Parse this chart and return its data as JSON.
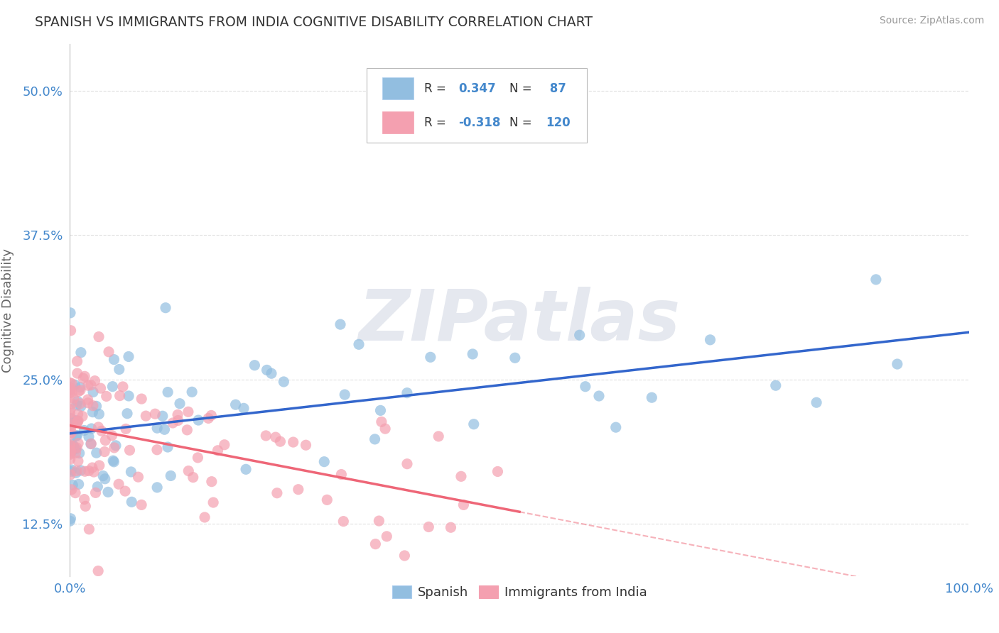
{
  "title": "SPANISH VS IMMIGRANTS FROM INDIA COGNITIVE DISABILITY CORRELATION CHART",
  "source": "Source: ZipAtlas.com",
  "xlim": [
    0,
    100
  ],
  "ylim": [
    8,
    54
  ],
  "ytick_vals": [
    12.5,
    25.0,
    37.5,
    50.0
  ],
  "xtick_vals": [
    0,
    100
  ],
  "blue_color": "#92BEE0",
  "pink_color": "#F4A0B0",
  "trend_blue_color": "#3366CC",
  "trend_pink_solid_color": "#EE6677",
  "trend_pink_dash_color": "#F4A0B0",
  "background_color": "#FFFFFF",
  "grid_color": "#CCCCCC",
  "tick_color": "#4488CC",
  "title_color": "#333333",
  "source_color": "#999999",
  "ylabel_color": "#666666",
  "watermark": "ZIPatlas",
  "legend_r1": "R = ",
  "legend_v1": "0.347",
  "legend_n1_label": "N = ",
  "legend_n1_val": " 87",
  "legend_r2": "R = ",
  "legend_v2": "-0.318",
  "legend_n2_label": "N = ",
  "legend_n2_val": "120",
  "ylabel": "Cognitive Disability",
  "legend_bottom": [
    "Spanish",
    "Immigrants from India"
  ]
}
